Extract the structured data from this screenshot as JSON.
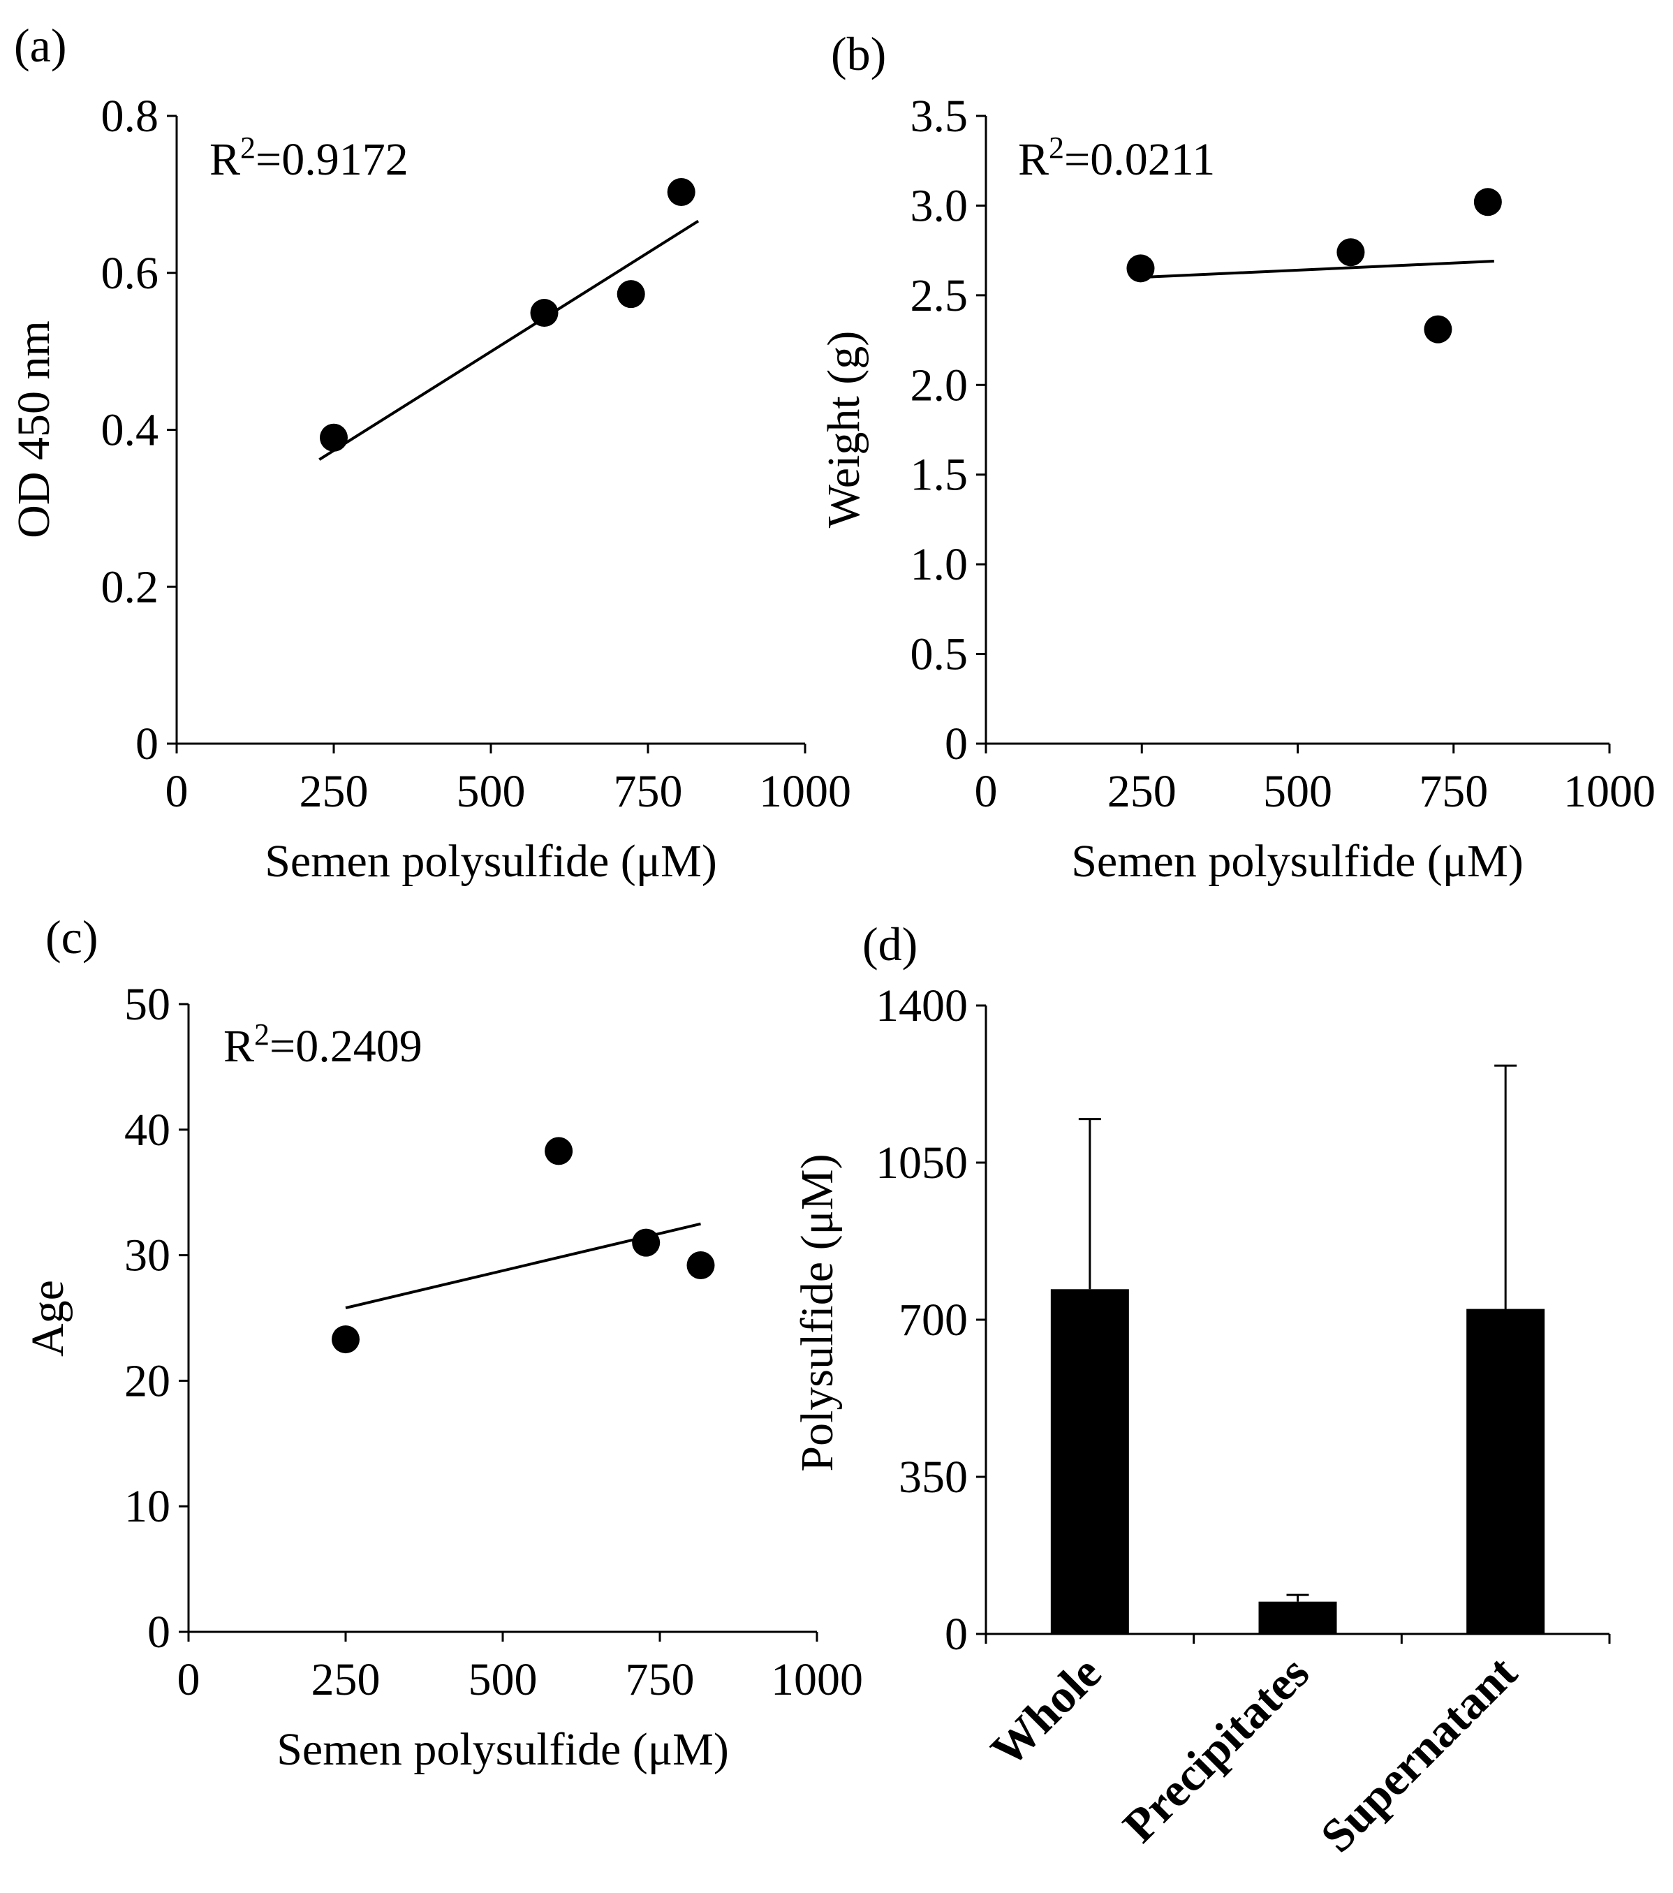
{
  "colors": {
    "ink": "#000000",
    "background": "#ffffff"
  },
  "chart_data": [
    {
      "panel": "(a)",
      "type": "scatter",
      "annotation": "R²=0.9172",
      "annotation_base": "R",
      "annotation_sup": "2",
      "annotation_rest": "=0.9172",
      "xlabel": "Semen polysulfide (μM)",
      "ylabel": "OD 450 nm",
      "xlim": [
        0,
        1000
      ],
      "ylim": [
        0,
        0.8
      ],
      "xticks": [
        0,
        250,
        500,
        750,
        1000
      ],
      "xtick_labels": [
        "0",
        "250",
        "500",
        "750",
        "1000"
      ],
      "yticks": [
        0,
        0.2,
        0.4,
        0.6,
        0.8
      ],
      "ytick_labels": [
        "0",
        "0.2",
        "0.4",
        "0.6",
        "0.8"
      ],
      "points": [
        {
          "x": 250,
          "y": 0.39
        },
        {
          "x": 585,
          "y": 0.549
        },
        {
          "x": 723,
          "y": 0.573
        },
        {
          "x": 803,
          "y": 0.703
        }
      ],
      "trendline": {
        "x": [
          227,
          830
        ],
        "y": [
          0.362,
          0.666
        ]
      }
    },
    {
      "panel": "(b)",
      "type": "scatter",
      "annotation": "R²=0.0211",
      "annotation_base": "R",
      "annotation_sup": "2",
      "annotation_rest": "=0.0211",
      "xlabel": "Semen polysulfide (μM)",
      "ylabel": "Weight (g)",
      "xlim": [
        0,
        1000
      ],
      "ylim": [
        0,
        3.5
      ],
      "xticks": [
        0,
        250,
        500,
        750,
        1000
      ],
      "xtick_labels": [
        "0",
        "250",
        "500",
        "750",
        "1000"
      ],
      "yticks": [
        0,
        0.5,
        1.0,
        1.5,
        2.0,
        2.5,
        3.0,
        3.5
      ],
      "ytick_labels": [
        "0",
        "0.5",
        "1.0",
        "1.5",
        "2.0",
        "2.5",
        "3.0",
        "3.5"
      ],
      "points": [
        {
          "x": 248,
          "y": 2.65
        },
        {
          "x": 585,
          "y": 2.74
        },
        {
          "x": 725,
          "y": 2.31
        },
        {
          "x": 805,
          "y": 3.02
        }
      ],
      "trendline": {
        "x": [
          248,
          815
        ],
        "y": [
          2.6,
          2.69
        ]
      }
    },
    {
      "panel": "(c)",
      "type": "scatter",
      "annotation": "R²=0.2409",
      "annotation_base": "R",
      "annotation_sup": "2",
      "annotation_rest": "=0.2409",
      "xlabel": "Semen polysulfide (μM)",
      "ylabel": "Age",
      "xlim": [
        0,
        1000
      ],
      "ylim": [
        0,
        50
      ],
      "xticks": [
        0,
        250,
        500,
        750,
        1000
      ],
      "xtick_labels": [
        "0",
        "250",
        "500",
        "750",
        "1000"
      ],
      "yticks": [
        0,
        10,
        20,
        30,
        40,
        50
      ],
      "ytick_labels": [
        "0",
        "10",
        "20",
        "30",
        "40",
        "50"
      ],
      "points": [
        {
          "x": 250,
          "y": 23.3
        },
        {
          "x": 589,
          "y": 38.3
        },
        {
          "x": 728,
          "y": 31.0
        },
        {
          "x": 815,
          "y": 29.2
        }
      ],
      "trendline": {
        "x": [
          250,
          815
        ],
        "y": [
          25.8,
          32.5
        ]
      }
    },
    {
      "panel": "(d)",
      "type": "bar",
      "ylabel": "Polysulfide (μM)",
      "xlabel": "",
      "ylim": [
        0,
        1400
      ],
      "yticks": [
        0,
        350,
        700,
        1050,
        1400
      ],
      "ytick_labels": [
        "0",
        "350",
        "700",
        "1050",
        "1400"
      ],
      "categories": [
        "Whole",
        "Precipitates",
        "Supernatant"
      ],
      "values": [
        768,
        72,
        724
      ],
      "errors": [
        379,
        15,
        542
      ]
    }
  ]
}
